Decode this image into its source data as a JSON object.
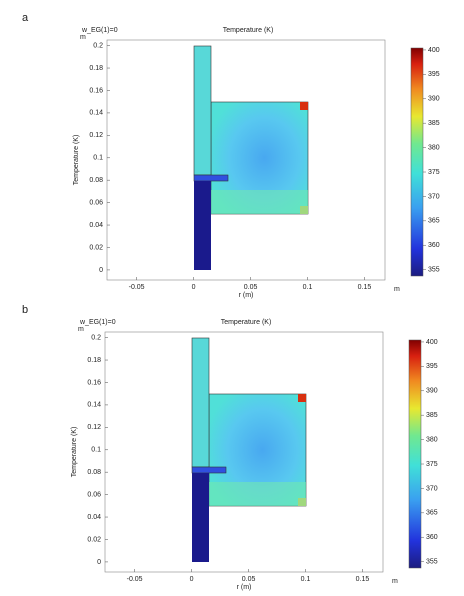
{
  "chart_data": [
    {
      "type": "surface",
      "panel": "a",
      "annotation": "w_EG(1)=0",
      "title": "Temperature (K)",
      "x_label": "r (m)",
      "y_label": "Temperature (K)",
      "x_unit": "m",
      "y_unit": "m",
      "xlim": [
        -0.076,
        0.168
      ],
      "xticks": [
        -0.05,
        0,
        0.05,
        0.1,
        0.15
      ],
      "ylim": [
        -0.009,
        0.205
      ],
      "yticks": [
        0,
        0.02,
        0.04,
        0.06,
        0.08,
        0.1,
        0.12,
        0.14,
        0.16,
        0.18,
        0.2
      ],
      "colorbar_lim": [
        353.7,
        400.4
      ],
      "colorbar_ticks": [
        355,
        360,
        365,
        370,
        375,
        380,
        385,
        390,
        395,
        400
      ]
    },
    {
      "type": "surface",
      "panel": "b",
      "annotation": "w_EG(1)=0",
      "title": "Temperature (K)",
      "x_label": "r (m)",
      "y_label": "Temperature (K)",
      "x_unit": "m",
      "y_unit": "m",
      "xlim": [
        -0.076,
        0.168
      ],
      "xticks": [
        -0.05,
        0,
        0.05,
        0.1,
        0.15
      ],
      "ylim": [
        -0.009,
        0.205
      ],
      "yticks": [
        0,
        0.02,
        0.04,
        0.06,
        0.08,
        0.1,
        0.12,
        0.14,
        0.16,
        0.18,
        0.2
      ],
      "colorbar_lim": [
        353.7,
        400.4
      ],
      "colorbar_ticks": [
        355,
        360,
        365,
        370,
        375,
        380,
        385,
        390,
        395,
        400
      ]
    }
  ]
}
